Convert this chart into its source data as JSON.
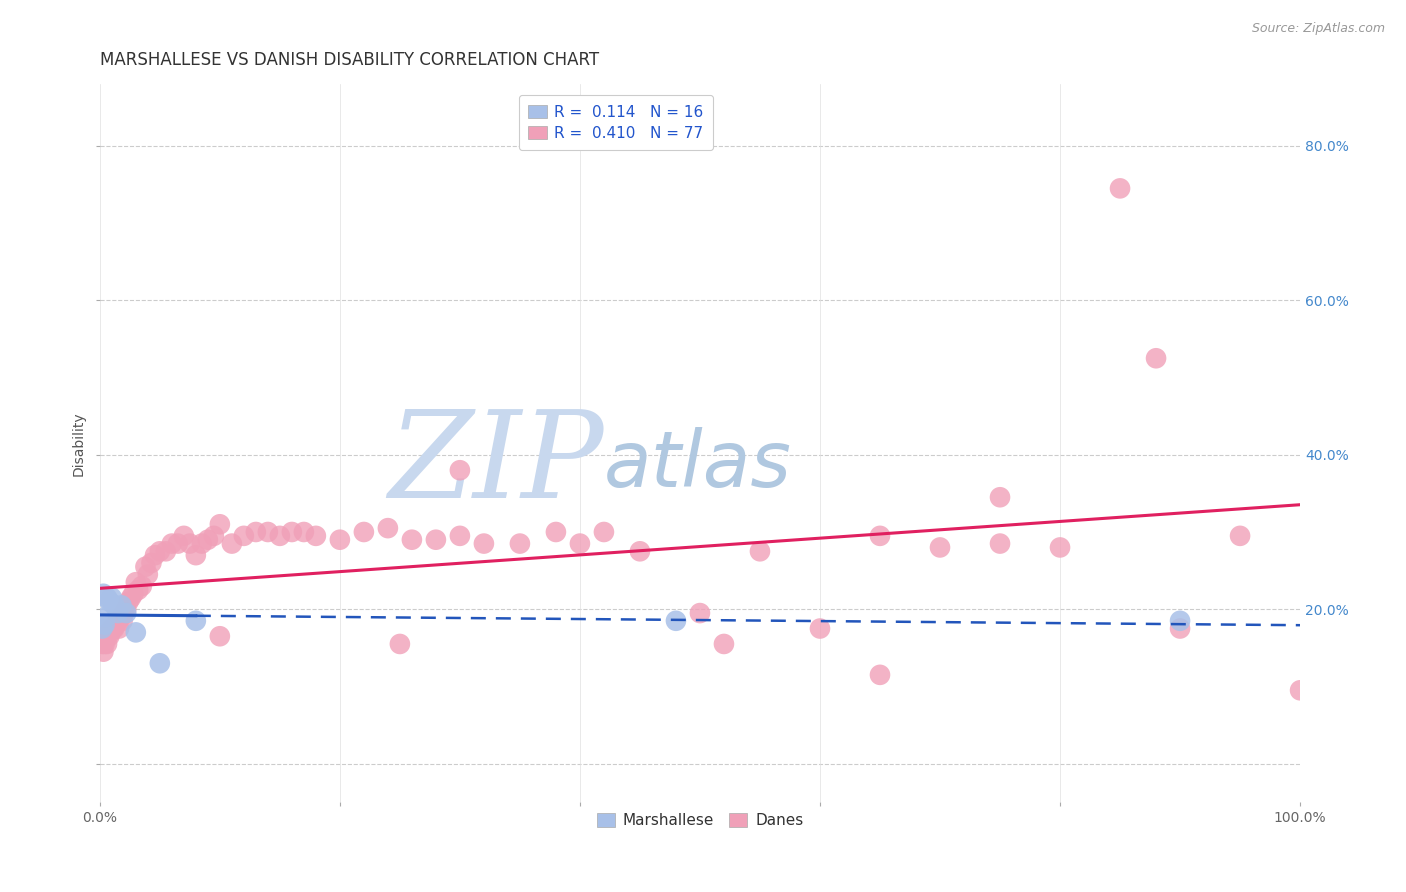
{
  "title": "MARSHALLESE VS DANISH DISABILITY CORRELATION CHART",
  "source": "Source: ZipAtlas.com",
  "xlabel": "",
  "ylabel": "Disability",
  "xlim": [
    0.0,
    1.0
  ],
  "ylim": [
    -0.05,
    0.88
  ],
  "xticks": [
    0.0,
    0.2,
    0.4,
    0.6,
    0.8,
    1.0
  ],
  "xticklabels": [
    "0.0%",
    "",
    "",
    "",
    "",
    "100.0%"
  ],
  "ytick_positions": [
    0.0,
    0.2,
    0.4,
    0.6,
    0.8
  ],
  "ytick_labels": [
    "",
    "20.0%",
    "40.0%",
    "60.0%",
    "80.0%"
  ],
  "background_color": "#ffffff",
  "grid_color": "#cccccc",
  "watermark_zip": "ZIP",
  "watermark_atlas": "atlas",
  "watermark_color_zip": "#c8d8ee",
  "watermark_color_atlas": "#b0c8e0",
  "marshallese_color": "#a8c0e8",
  "danish_color": "#f0a0b8",
  "marshallese_line_color": "#2255bb",
  "danish_line_color": "#e02060",
  "legend_r_color": "#2255cc",
  "marshallese_R": 0.114,
  "marshallese_N": 16,
  "danish_R": 0.41,
  "danish_N": 77,
  "marshallese_x": [
    0.002,
    0.003,
    0.004,
    0.005,
    0.006,
    0.008,
    0.01,
    0.012,
    0.015,
    0.018,
    0.022,
    0.03,
    0.05,
    0.08,
    0.48,
    0.9
  ],
  "marshallese_y": [
    0.175,
    0.22,
    0.18,
    0.19,
    0.215,
    0.21,
    0.215,
    0.205,
    0.195,
    0.205,
    0.195,
    0.17,
    0.13,
    0.185,
    0.185,
    0.185
  ],
  "danish_x": [
    0.002,
    0.003,
    0.004,
    0.005,
    0.006,
    0.007,
    0.008,
    0.009,
    0.01,
    0.011,
    0.012,
    0.013,
    0.015,
    0.016,
    0.018,
    0.019,
    0.02,
    0.022,
    0.024,
    0.026,
    0.028,
    0.03,
    0.032,
    0.035,
    0.038,
    0.04,
    0.043,
    0.046,
    0.05,
    0.055,
    0.06,
    0.065,
    0.07,
    0.075,
    0.08,
    0.085,
    0.09,
    0.095,
    0.1,
    0.11,
    0.12,
    0.13,
    0.14,
    0.15,
    0.16,
    0.17,
    0.18,
    0.2,
    0.22,
    0.24,
    0.26,
    0.28,
    0.3,
    0.32,
    0.35,
    0.4,
    0.45,
    0.5,
    0.55,
    0.6,
    0.65,
    0.7,
    0.75,
    0.8,
    0.85,
    0.9,
    0.95,
    1.0,
    0.38,
    0.42,
    0.1,
    0.25,
    0.3,
    0.52,
    0.65,
    0.75,
    0.88
  ],
  "danish_y": [
    0.155,
    0.145,
    0.155,
    0.165,
    0.155,
    0.17,
    0.165,
    0.17,
    0.175,
    0.175,
    0.175,
    0.18,
    0.185,
    0.175,
    0.19,
    0.185,
    0.195,
    0.2,
    0.21,
    0.215,
    0.22,
    0.235,
    0.225,
    0.23,
    0.255,
    0.245,
    0.26,
    0.27,
    0.275,
    0.275,
    0.285,
    0.285,
    0.295,
    0.285,
    0.27,
    0.285,
    0.29,
    0.295,
    0.31,
    0.285,
    0.295,
    0.3,
    0.3,
    0.295,
    0.3,
    0.3,
    0.295,
    0.29,
    0.3,
    0.305,
    0.29,
    0.29,
    0.295,
    0.285,
    0.285,
    0.285,
    0.275,
    0.195,
    0.275,
    0.175,
    0.295,
    0.28,
    0.285,
    0.28,
    0.745,
    0.175,
    0.295,
    0.095,
    0.3,
    0.3,
    0.165,
    0.155,
    0.38,
    0.155,
    0.115,
    0.345,
    0.525
  ],
  "title_fontsize": 12,
  "axis_label_fontsize": 10,
  "tick_fontsize": 10,
  "legend_fontsize": 11,
  "source_fontsize": 9
}
